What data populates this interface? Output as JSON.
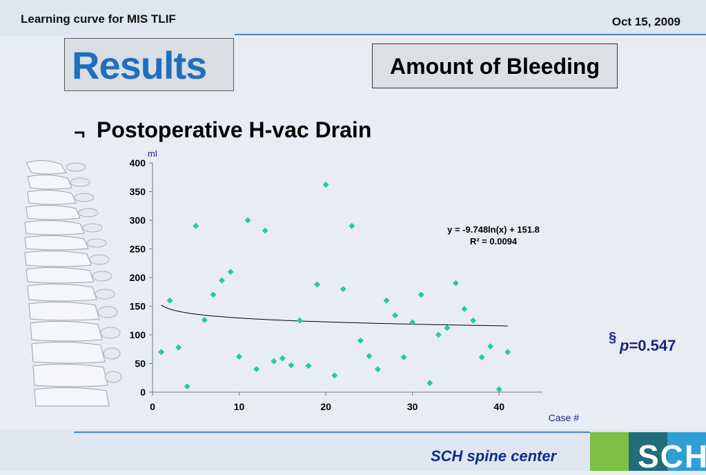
{
  "header": {
    "title": "Learning curve for MIS TLIF",
    "date": "Oct 15, 2009"
  },
  "slide": {
    "results_label": "Results",
    "section_label": "Amount of Bleeding",
    "bullet_symbol": "¬",
    "bullet_text": "Postoperative H-vac Drain",
    "pvalue_symbol": "§",
    "pvalue_p": "p",
    "pvalue_value": "=0.547"
  },
  "footer": {
    "text": "SCH spine center",
    "logo_text": "SCH"
  },
  "colors": {
    "accent": "#1e6fc2",
    "marker": "#1fcf9a",
    "footer_text": "#0d2d8a",
    "rule": "#4a87c7"
  },
  "chart_data": {
    "type": "scatter",
    "title": "",
    "xlabel": "Case #",
    "ylabel": "ml",
    "xlim": [
      0,
      45
    ],
    "ylim": [
      0,
      400
    ],
    "x_ticks": [
      0,
      10,
      20,
      30,
      40
    ],
    "y_ticks": [
      0,
      50,
      100,
      150,
      200,
      250,
      300,
      350,
      400
    ],
    "grid": false,
    "series": [
      {
        "x": [
          1,
          2,
          3,
          4,
          5,
          6,
          7,
          8,
          9,
          10,
          11,
          12,
          13,
          14,
          15,
          16,
          17,
          18,
          19,
          20,
          21,
          22,
          23,
          24,
          25,
          26,
          27,
          28,
          29,
          30,
          31,
          32,
          33,
          34,
          35,
          36,
          37,
          38,
          39,
          40,
          41
        ],
        "y": [
          70,
          160,
          78,
          10,
          290,
          126,
          170,
          195,
          210,
          62,
          300,
          40,
          282,
          54,
          59,
          47,
          125,
          46,
          188,
          362,
          29,
          180,
          290,
          90,
          63,
          40,
          160,
          134,
          61,
          122,
          170,
          16,
          100,
          112,
          190,
          145,
          125,
          61,
          80,
          5,
          70
        ]
      }
    ],
    "trendline": {
      "type": "logarithmic",
      "a": -9.748,
      "b": 151.8,
      "x_range": [
        1,
        41
      ]
    },
    "annotations": [
      "y = -9.748ln(x) + 151.8",
      "R² = 0.0094"
    ]
  }
}
